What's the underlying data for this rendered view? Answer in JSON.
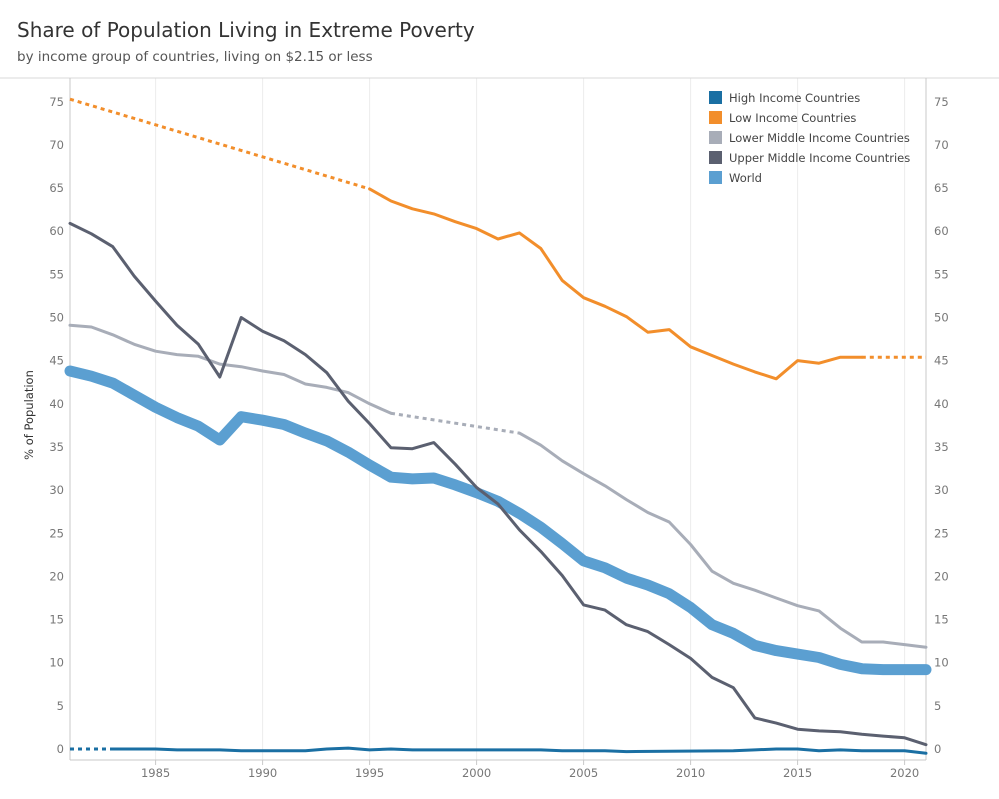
{
  "header": {
    "title": "Share of Population Living in Extreme Poverty",
    "subtitle": "by income group of countries, living on $2.15 or less"
  },
  "chart_data": {
    "type": "line",
    "title": "Share of Population Living in Extreme Poverty",
    "subtitle": "by income group of countries, living on $2.15 or less",
    "xlabel": "",
    "ylabel": "% of Population",
    "xlim": [
      1981,
      2021
    ],
    "ylim": [
      0,
      78
    ],
    "x_ticks": [
      "1985",
      "1990",
      "1995",
      "2000",
      "2005",
      "2010",
      "2015",
      "2020"
    ],
    "y_ticks": [
      "0",
      "5",
      "10",
      "15",
      "20",
      "25",
      "30",
      "35",
      "40",
      "45",
      "50",
      "55",
      "60",
      "65",
      "70",
      "75"
    ],
    "grid": "vertical",
    "dual_y_axis": true,
    "legend_position": "top-right",
    "series": [
      {
        "name": "High Income Countries",
        "color": "#1a6fa3",
        "width": 3,
        "points": [
          [
            1983,
            0
          ],
          [
            1985,
            0
          ],
          [
            1986,
            -0.1
          ],
          [
            1988,
            -0.1
          ],
          [
            1989,
            -0.2
          ],
          [
            1992,
            -0.2
          ],
          [
            1993,
            0
          ],
          [
            1994,
            0.1
          ],
          [
            1995,
            -0.1
          ],
          [
            1996,
            0
          ],
          [
            1997,
            -0.1
          ],
          [
            2002,
            -0.1
          ],
          [
            2003,
            -0.1
          ],
          [
            2004,
            -0.2
          ],
          [
            2006,
            -0.2
          ],
          [
            2007,
            -0.3
          ],
          [
            2012,
            -0.2
          ],
          [
            2013,
            -0.1
          ],
          [
            2014,
            0
          ],
          [
            2015,
            0
          ],
          [
            2016,
            -0.2
          ],
          [
            2017,
            -0.1
          ],
          [
            2018,
            -0.2
          ],
          [
            2019,
            -0.2
          ],
          [
            2020,
            -0.2
          ],
          [
            2021,
            -0.5
          ]
        ],
        "dashed_points": [
          [
            1981,
            0
          ],
          [
            1983,
            0
          ]
        ]
      },
      {
        "name": "Low Income Countries",
        "color": "#f28e2b",
        "width": 3,
        "points": [
          [
            1995,
            64.9
          ],
          [
            1996,
            63.5
          ],
          [
            1997,
            62.6
          ],
          [
            1998,
            62
          ],
          [
            1999,
            61.1
          ],
          [
            2000,
            60.3
          ],
          [
            2001,
            59.1
          ],
          [
            2002,
            59.8
          ],
          [
            2003,
            58
          ],
          [
            2004,
            54.3
          ],
          [
            2005,
            52.3
          ],
          [
            2006,
            51.3
          ],
          [
            2007,
            50.1
          ],
          [
            2008,
            48.3
          ],
          [
            2009,
            48.6
          ],
          [
            2010,
            46.6
          ],
          [
            2011,
            45.6
          ],
          [
            2012,
            44.6
          ],
          [
            2013,
            43.7
          ],
          [
            2014,
            42.9
          ],
          [
            2015,
            45
          ],
          [
            2016,
            44.7
          ],
          [
            2017,
            45.4
          ],
          [
            2018,
            45.4
          ]
        ],
        "dashed_points": [
          [
            1981,
            75.3
          ],
          [
            1995,
            64.9
          ]
        ],
        "dashed_points_after": [
          [
            2018,
            45.4
          ],
          [
            2021,
            45.4
          ]
        ]
      },
      {
        "name": "Lower Middle Income Countries",
        "color": "#a8adb8",
        "width": 3,
        "points": [
          [
            1981,
            49.1
          ],
          [
            1982,
            48.9
          ],
          [
            1983,
            48
          ],
          [
            1984,
            46.9
          ],
          [
            1985,
            46.1
          ],
          [
            1986,
            45.7
          ],
          [
            1987,
            45.5
          ],
          [
            1988,
            44.6
          ],
          [
            1989,
            44.3
          ],
          [
            1990,
            43.8
          ],
          [
            1991,
            43.4
          ],
          [
            1992,
            42.3
          ],
          [
            1993,
            41.9
          ],
          [
            1994,
            41.3
          ],
          [
            1995,
            40
          ],
          [
            1996,
            38.9
          ]
        ],
        "dashed_points": [
          [
            1996,
            38.9
          ],
          [
            2002,
            36.6
          ]
        ],
        "points_after": [
          [
            2002,
            36.6
          ],
          [
            2003,
            35.2
          ],
          [
            2004,
            33.4
          ],
          [
            2005,
            31.9
          ],
          [
            2006,
            30.5
          ],
          [
            2007,
            28.9
          ],
          [
            2008,
            27.4
          ],
          [
            2009,
            26.3
          ],
          [
            2010,
            23.7
          ],
          [
            2011,
            20.6
          ],
          [
            2012,
            19.2
          ],
          [
            2013,
            18.4
          ],
          [
            2014,
            17.5
          ],
          [
            2015,
            16.6
          ],
          [
            2016,
            16
          ],
          [
            2017,
            14
          ],
          [
            2018,
            12.4
          ],
          [
            2019,
            12.4
          ],
          [
            2020,
            12.1
          ],
          [
            2021,
            11.8
          ]
        ]
      },
      {
        "name": "Upper Middle Income Countries",
        "color": "#5b6070",
        "width": 3,
        "points": [
          [
            1981,
            60.9
          ],
          [
            1982,
            59.7
          ],
          [
            1983,
            58.2
          ],
          [
            1984,
            54.8
          ],
          [
            1985,
            51.9
          ],
          [
            1986,
            49.1
          ],
          [
            1987,
            46.9
          ],
          [
            1988,
            43.1
          ],
          [
            1989,
            50
          ],
          [
            1990,
            48.4
          ],
          [
            1991,
            47.3
          ],
          [
            1992,
            45.7
          ],
          [
            1993,
            43.6
          ],
          [
            1994,
            40.3
          ],
          [
            1995,
            37.7
          ],
          [
            1996,
            34.9
          ],
          [
            1997,
            34.8
          ],
          [
            1998,
            35.5
          ],
          [
            1999,
            33
          ],
          [
            2000,
            30.3
          ],
          [
            2001,
            28.4
          ],
          [
            2002,
            25.4
          ],
          [
            2003,
            22.9
          ],
          [
            2004,
            20.1
          ],
          [
            2005,
            16.7
          ],
          [
            2006,
            16.1
          ],
          [
            2007,
            14.4
          ],
          [
            2008,
            13.6
          ],
          [
            2009,
            12.1
          ],
          [
            2010,
            10.5
          ],
          [
            2011,
            8.3
          ],
          [
            2012,
            7.1
          ],
          [
            2013,
            3.6
          ],
          [
            2014,
            3
          ],
          [
            2015,
            2.3
          ],
          [
            2016,
            2.1
          ],
          [
            2017,
            2
          ],
          [
            2018,
            1.7
          ],
          [
            2019,
            1.5
          ],
          [
            2020,
            1.3
          ],
          [
            2021,
            0.5
          ]
        ]
      },
      {
        "name": "World",
        "color": "#5b9fd1",
        "width": 11,
        "points": [
          [
            1981,
            43.8
          ],
          [
            1982,
            43.2
          ],
          [
            1983,
            42.4
          ],
          [
            1984,
            41
          ],
          [
            1985,
            39.6
          ],
          [
            1986,
            38.4
          ],
          [
            1987,
            37.4
          ],
          [
            1988,
            35.8
          ],
          [
            1989,
            38.5
          ],
          [
            1990,
            38.1
          ],
          [
            1991,
            37.6
          ],
          [
            1992,
            36.6
          ],
          [
            1993,
            35.7
          ],
          [
            1994,
            34.4
          ],
          [
            1995,
            32.9
          ],
          [
            1996,
            31.5
          ],
          [
            1997,
            31.3
          ],
          [
            1998,
            31.4
          ],
          [
            1999,
            30.6
          ],
          [
            2000,
            29.7
          ],
          [
            2001,
            28.7
          ],
          [
            2002,
            27.3
          ],
          [
            2003,
            25.7
          ],
          [
            2004,
            23.8
          ],
          [
            2005,
            21.8
          ],
          [
            2006,
            21
          ],
          [
            2007,
            19.8
          ],
          [
            2008,
            19
          ],
          [
            2009,
            18
          ],
          [
            2010,
            16.4
          ],
          [
            2011,
            14.4
          ],
          [
            2012,
            13.4
          ],
          [
            2013,
            12
          ],
          [
            2014,
            11.4
          ],
          [
            2015,
            11
          ],
          [
            2016,
            10.6
          ],
          [
            2017,
            9.8
          ],
          [
            2018,
            9.3
          ],
          [
            2019,
            9.2
          ],
          [
            2020,
            9.2
          ],
          [
            2021,
            9.2
          ]
        ]
      }
    ]
  }
}
